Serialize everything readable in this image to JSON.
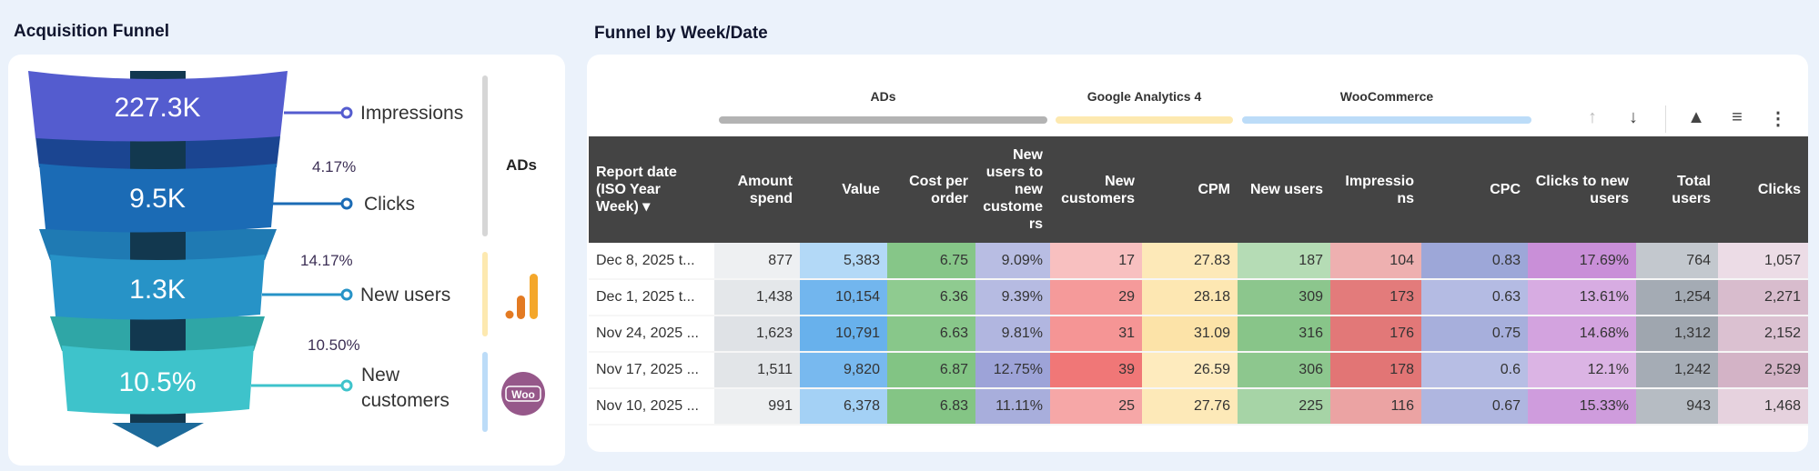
{
  "funnel_panel": {
    "title": "Acquisition Funnel",
    "stages": [
      {
        "value": "227.3K",
        "label": "Impressions",
        "color": "#545ccf"
      },
      {
        "value": "9.5K",
        "label": "Clicks",
        "color": "#1b6bb5"
      },
      {
        "value": "1.3K",
        "label": "New users",
        "color": "#2793c7"
      },
      {
        "value": "10.5%",
        "label_line1": "New",
        "label_line2": "customers",
        "color": "#3ec3cb"
      }
    ],
    "conversion_rates": [
      "4.17%",
      "14.17%",
      "10.50%"
    ],
    "sources": [
      {
        "label": "ADs",
        "color": "#d6d6d6"
      },
      {
        "icon": "google-analytics-icon",
        "color": "#fde9b0"
      },
      {
        "icon": "woocommerce-icon",
        "icon_text": "Woo",
        "color": "#bcdcf8"
      }
    ]
  },
  "table_panel": {
    "title": "Funnel by Week/Date",
    "groups": [
      {
        "label": "ADs",
        "color": "#b3b3b3"
      },
      {
        "label": "Google Analytics 4",
        "color": "#fde9b0"
      },
      {
        "label": "WooCommerce",
        "color": "#bcdcf8"
      }
    ],
    "toolbar": [
      "sort-ascending-icon",
      "sort-descending-icon",
      "warning-icon",
      "filter-icon",
      "more-options-icon"
    ],
    "columns": [
      "Report date (ISO Year Week) ▾",
      "Amount spend",
      "Value",
      "Cost per order",
      "New users to new customers",
      "New customers",
      "CPM",
      "New users",
      "Impressions",
      "CPC",
      "Clicks to new users",
      "Total users",
      "Clicks"
    ],
    "rows": [
      {
        "cells": [
          "Dec 8, 2025 t...",
          "877",
          "5,383",
          "6.75",
          "9.09%",
          "17",
          "27.83",
          "187",
          "104",
          "0.83",
          "17.69%",
          "764",
          "1,057"
        ],
        "colors": [
          "#ffffff",
          "#eef0f2",
          "#b3d9f7",
          "#86c688",
          "#b8bde3",
          "#f8c0c0",
          "#fde9b8",
          "#b5dcb5",
          "#eeb0b0",
          "#9da7d8",
          "#c98fd8",
          "#c3c8ce",
          "#ecdce6"
        ]
      },
      {
        "cells": [
          "Dec 1, 2025 t...",
          "1,438",
          "10,154",
          "6.36",
          "9.39%",
          "29",
          "28.18",
          "309",
          "173",
          "0.63",
          "13.61%",
          "1,254",
          "2,271"
        ],
        "colors": [
          "#ffffff",
          "#e4e7ea",
          "#72b6ee",
          "#8fcb90",
          "#b6bbe2",
          "#f59a9a",
          "#fde7b2",
          "#8cc68d",
          "#e37b7b",
          "#b4bbe3",
          "#d7ace2",
          "#a4abb4",
          "#d8bccd"
        ]
      },
      {
        "cells": [
          "Nov 24, 2025 ...",
          "1,623",
          "10,791",
          "6.63",
          "9.81%",
          "31",
          "31.09",
          "316",
          "176",
          "0.75",
          "14.68%",
          "1,312",
          "2,152"
        ],
        "colors": [
          "#ffffff",
          "#dfe2e6",
          "#68b1ec",
          "#88c78a",
          "#b1b6e0",
          "#f59595",
          "#fce3a8",
          "#88c589",
          "#e27878",
          "#a7afdc",
          "#d3a3df",
          "#9fa6af",
          "#dbc1d1"
        ]
      },
      {
        "cells": [
          "Nov 17, 2025 ...",
          "1,511",
          "9,820",
          "6.87",
          "12.75%",
          "39",
          "26.59",
          "306",
          "178",
          "0.6",
          "12.1%",
          "1,242",
          "2,529"
        ],
        "colors": [
          "#ffffff",
          "#e2e5e8",
          "#78b9ef",
          "#82c484",
          "#9da3d8",
          "#f07777",
          "#feebbe",
          "#8dc78e",
          "#e27575",
          "#b7bee4",
          "#dbb4e4",
          "#a5acb5",
          "#d3b3c6"
        ]
      },
      {
        "cells": [
          "Nov 10, 2025 ...",
          "991",
          "6,378",
          "6.83",
          "11.11%",
          "25",
          "27.76",
          "225",
          "116",
          "0.67",
          "15.33%",
          "943",
          "1,468"
        ],
        "colors": [
          "#ffffff",
          "#edeff1",
          "#a4d1f5",
          "#84c585",
          "#a8aedc",
          "#f6a7a7",
          "#fde9b8",
          "#a6d4a6",
          "#eba3a3",
          "#afb6e0",
          "#cf9cdd",
          "#b6bcc3",
          "#e6d2de"
        ]
      }
    ]
  }
}
